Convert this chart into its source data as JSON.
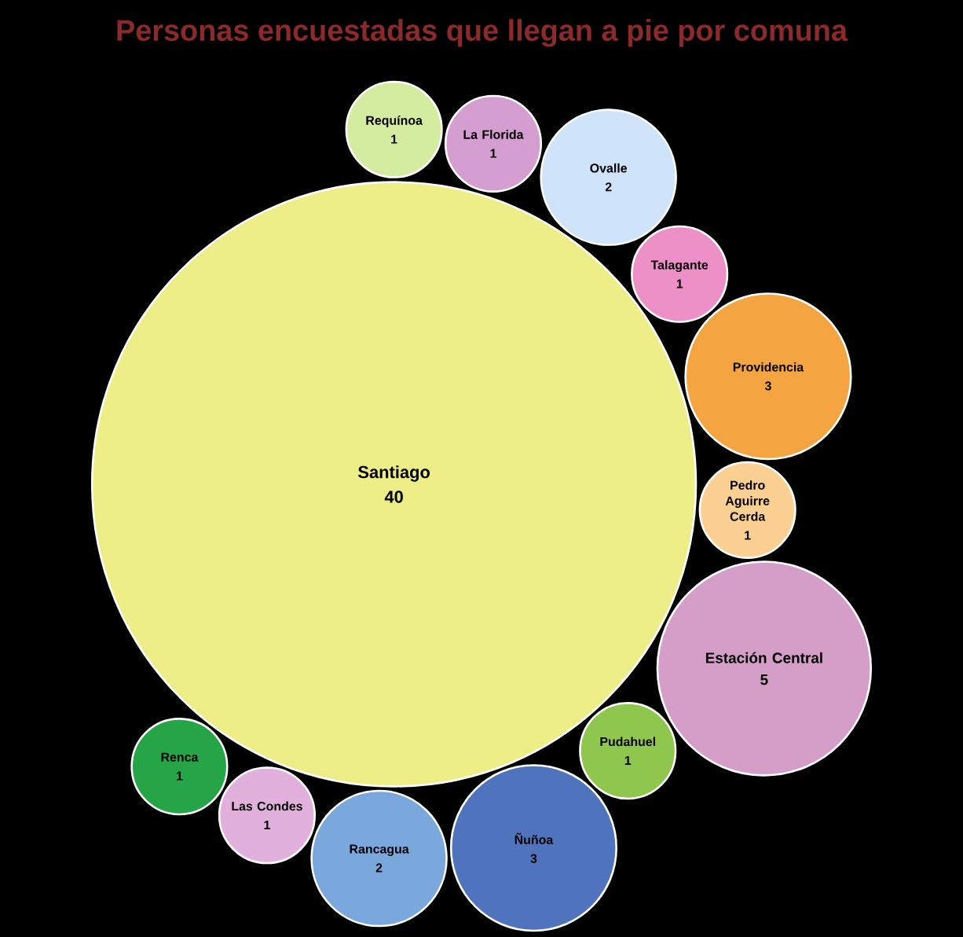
{
  "chart_data": {
    "type": "other",
    "title": "Personas encuestadas que llegan a pie por comuna",
    "categories": [
      "Santiago",
      "Requínoa",
      "La Florida",
      "Ovalle",
      "Talagante",
      "Providencia",
      "Pedro Aguirre Cerda",
      "Estación Central",
      "Pudahuel",
      "Ñuñoa",
      "Rancagua",
      "Las Condes",
      "Renca"
    ],
    "values": [
      40,
      1,
      1,
      2,
      1,
      3,
      1,
      5,
      1,
      3,
      2,
      1,
      1
    ],
    "value_labels": [
      "40",
      "1",
      "1",
      "2",
      "1",
      "3",
      "1",
      "5",
      "1",
      "3",
      "2",
      "1",
      "1"
    ],
    "colors": [
      "#eeee88",
      "#d3eca0",
      "#d49fd0",
      "#cfe3fa",
      "#ee90c8",
      "#f5a442",
      "#fbd092",
      "#d49ec8",
      "#8ec64e",
      "#4f74bd",
      "#7aa8dc",
      "#e2b0dc",
      "#26a547"
    ]
  }
}
